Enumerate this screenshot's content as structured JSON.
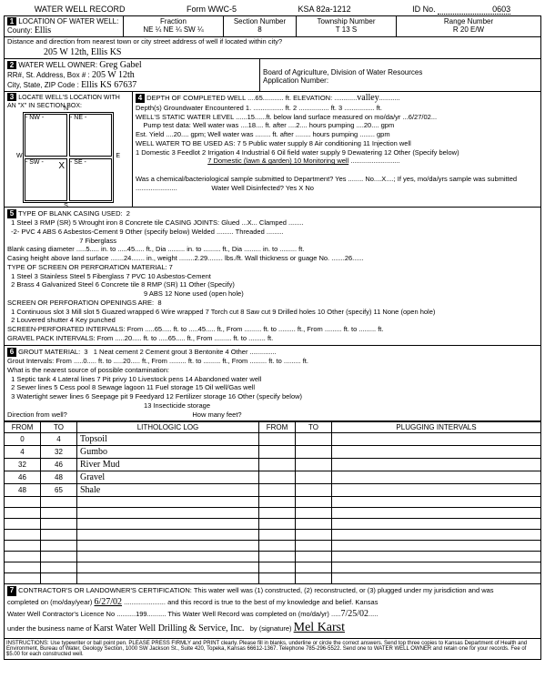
{
  "form": {
    "title": "WATER WELL RECORD",
    "form_no": "Form WWC-5",
    "ksa": "KSA 82a-1212",
    "id_label": "ID No.",
    "id_val": "0603"
  },
  "loc": {
    "label": "LOCATION OF WATER WELL:",
    "county_label": "County:",
    "county": "Ellis",
    "fraction_label": "Fraction",
    "fraction": "NE ¼   NE ¼   SW ¼",
    "section_label": "Section Number",
    "section": "8",
    "township_label": "Township Number",
    "township": "T    13    S",
    "range_label": "Range Number",
    "range": "R    20    E/W"
  },
  "addr_line_label": "Distance and direction from nearest town or city street address of well if located within city?",
  "addr_line": "205 W 12th, Ellis KS",
  "owner": {
    "label": "WATER WELL OWNER:",
    "name": "Greg Gabel",
    "addr_label": "RR#, St. Address, Box #",
    "addr": "205 W 12th",
    "city_label": "City, State, ZIP Code",
    "city": "Ellis KS 67637",
    "board": "Board of Agriculture, Division of Water Resources",
    "app_label": "Application Number:"
  },
  "sec3_label": "LOCATE WELL'S LOCATION WITH AN \"X\" IN SECTION BOX:",
  "depth": {
    "label": "DEPTH OF COMPLETED WELL",
    "val": "65",
    "elev_label": "ft. ELEVATION:",
    "elev": "valley",
    "gw_label": "Depth(s) Groundwater Encountered",
    "static_label": "WELL'S STATIC WATER LEVEL",
    "static": "15",
    "static_unit": "ft. below land surface measured on mo/da/yr",
    "static_date": "6/27/02",
    "pump_label": "Pump test data: Well water was",
    "pump_v1": "18",
    "pump_after": "ft. after",
    "pump_v2": "2",
    "pump_hours": "hours pumping",
    "pump_gpm": "20",
    "est_label": "Est. Yield",
    "est_val": "20",
    "est_unit": "gpm; Well water was",
    "use_label": "WELL WATER TO BE USED AS:",
    "uses": "7  5 Public water supply       8 Air conditioning      11 Injection well",
    "uses2": "1 Domestic    3 Feedlot    2 Irrigation    4 Industrial    6 Oil field water supply    9 Dewatering    12 Other (Specify below)",
    "uses3": "7 Domestic (lawn & garden)   10 Monitoring well",
    "chem_q": "Was a chemical/bacteriological sample submitted to Department? Yes ........ No....X....; If yes, mo/da/yrs sample was submitted",
    "disinfect": "Water Well Disinfected?  Yes  X   No"
  },
  "casing": {
    "label": "TYPE OF BLANK CASING USED:",
    "val": "2",
    "opts": "1 Steel      3 RMP (SR)      5 Wrought iron      8 Concrete tile      CASING JOINTS: Glued ...X... Clamped ........",
    "opts2": "-2- PVC      4 ABS      6 Asbestos-Cement      9 Other (specify below)      Welded ......... Threaded .........",
    "opts3": "7 Fiberglass",
    "diam_label": "Blank casing diameter",
    "diam": "5",
    "diam_to": "in. to",
    "diam_ft": "45",
    "height_label": "Casing height above land surface",
    "height": "24",
    "weight_label": "in., weight",
    "weight": "2.29",
    "weight_unit": "lbs./ft. Wall thickness or guage No.",
    "gauge": ".26",
    "screen_label": "TYPE OF SCREEN OR PERFORATION MATERIAL:",
    "screen_val": "7",
    "screen_opts": "1 Steel      3 Stainless Steel      5 Fiberglass      7 PVC      10 Asbestos-Cement",
    "screen_opts2": "2 Brass      4 Galvanized Steel      6 Concrete tile      8 RMP (SR)      11 Other (Specify)",
    "screen_opts3": "9 ABS      12 None used (open hole)",
    "open_label": "SCREEN OR PERFORATION OPENINGS ARE:",
    "open_val": "8",
    "open_opts": "1 Continuous slot   3 Mill slot   5 Guazed wrapped   6 Wire wrapped   7 Torch cut   8 Saw cut   9 Drilled holes   10 Other (specify)   11 None (open hole)",
    "open_opts2": "2 Louvered shutter   4 Key punched",
    "perf_label": "SCREEN-PERFORATED INTERVALS:    From",
    "perf_from": "65",
    "perf_to_label": "ft. to",
    "perf_to": "45",
    "gravel_label": "GRAVEL PACK INTERVALS:    From",
    "gravel_from": "20",
    "gravel_to": "65"
  },
  "grout": {
    "label": "GROUT MATERIAL:",
    "val": "3",
    "opts": "1 Neat cement      2 Cement grout      3 Bentonite      4 Other",
    "int_label": "Grout Intervals:   From",
    "int_from": "0",
    "int_to": "20",
    "contam_label": "What is the nearest source of possible contamination:",
    "contam_opts": "1 Septic tank   4 Lateral lines   7 Pit privy   10 Livestock pens   14 Abandoned water well",
    "contam_opts2": "2 Sewer lines   5 Cess pool   8 Sewage lagoon   11 Fuel storage   15 Oil well/Gas well",
    "contam_opts3": "3 Watertight sewer lines   6 Seepage pit   9 Feedyard   12 Fertilizer storage   16 Other (specify below)",
    "contam_opts4": "13 Insecticide storage",
    "dir_label": "Direction from well?",
    "feet_label": "How many feet?"
  },
  "log": {
    "h_from": "FROM",
    "h_to": "TO",
    "h_litho": "LITHOLOGIC LOG",
    "h_plug": "PLUGGING INTERVALS",
    "rows": [
      {
        "from": "0",
        "to": "4",
        "l": "Topsoil"
      },
      {
        "from": "4",
        "to": "32",
        "l": "Gumbo"
      },
      {
        "from": "32",
        "to": "46",
        "l": "River Mud"
      },
      {
        "from": "46",
        "to": "48",
        "l": "Gravel"
      },
      {
        "from": "48",
        "to": "65",
        "l": "Shale"
      }
    ]
  },
  "cert": {
    "label": "CONTRACTOR'S OR LANDOWNER'S CERTIFICATION: This water well was (1) constructed, (2) reconstructed, or (3) plugged under my jurisdiction and was",
    "comp_label": "completed on (mo/day/year)",
    "comp_date": "6/27/02",
    "true_label": "and this record is true to the best of my knowledge and belief. Kansas",
    "lic_label": "Water Well Contractor's Licence No",
    "lic": "199",
    "rec_label": "This Water Well Record was completed on (mo/da/yr)",
    "rec_date": "7/25/02",
    "bus_label": "under the business name of",
    "bus": "Karst Water Well Drilling & Service, Inc.",
    "sig_label": "by (signature)",
    "sig": "Mel Karst"
  },
  "instructions": "INSTRUCTIONS: Use typewriter or ball point pen. PLEASE PRESS FIRMLY and PRINT clearly. Please fill in blanks, underline or circle the correct answers. Send top three copies to Kansas Department of Health and Environment, Bureau of Water, Geology Section, 1000 SW Jackson St., Suite 420, Topeka, Kansas 66612-1367. Telephone 785-296-5522. Send one to WATER WELL OWNER and retain one for your records. Fee of $5.00 for each constructed well."
}
